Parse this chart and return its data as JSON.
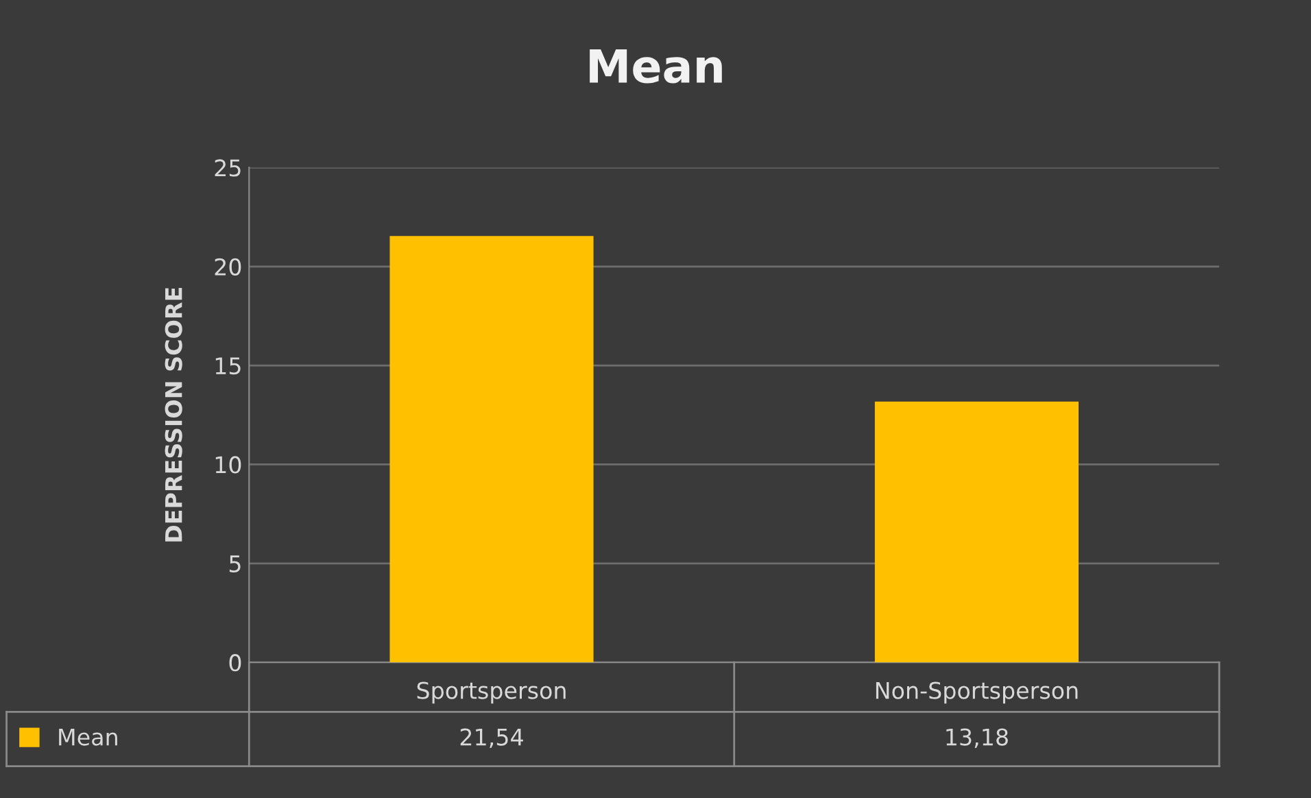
{
  "chart_data": {
    "type": "bar",
    "title": "Mean",
    "ylabel": "DEPRESSION SCORE",
    "categories": [
      "Sportsperson",
      "Non-Sportsperson"
    ],
    "series": [
      {
        "name": "Mean",
        "color": "#ffc000",
        "values": [
          21.54,
          13.18
        ],
        "value_labels": [
          "21,54",
          "13,18"
        ]
      }
    ],
    "ylim": [
      0,
      25
    ],
    "yticks": [
      0,
      5,
      10,
      15,
      20,
      25
    ],
    "grid": "y",
    "legend": "bottom left"
  }
}
